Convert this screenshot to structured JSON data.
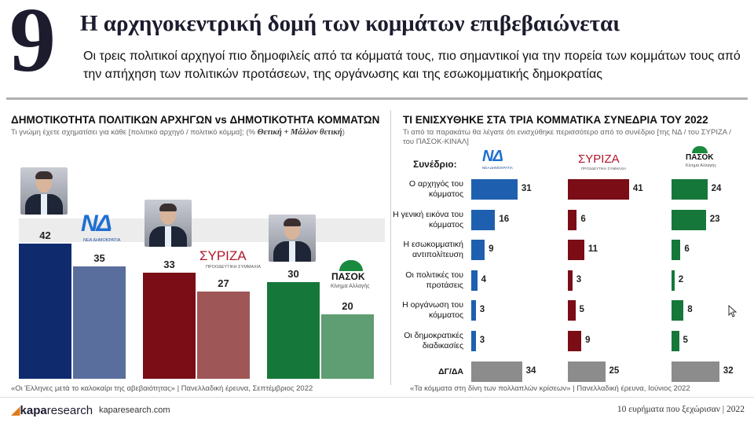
{
  "header": {
    "number": "9",
    "title": "Η αρχηγοκεντρική δομή των κομμάτων επιβεβαιώνεται",
    "subtitle": "Οι τρεις πολιτικοί αρχηγοί πιο δημοφιλείς από τα κόμματά τους, πιο σημαντικοί για την πορεία των κομμάτων τους από την απήχηση των πολιτικών προτάσεων, της οργάνωσης και της εσωκομματικής δημοκρατίας"
  },
  "logos": {
    "nd": "ΝΔ",
    "nd_sub": "ΝΕΑ ΔΗΜΟΚΡΑΤΙΑ",
    "syriza": "ΣΥΡΙΖΑ",
    "syriza_sub": "ΠΡΟΟΔΕΥΤΙΚΗ ΣΥΜΜΑΧΙΑ",
    "pasok": "ΠΑΣΟΚ",
    "pasok_sub": "Κίνημα Αλλαγής"
  },
  "left_chart": {
    "heading": "ΔΗΜΟΤΙΚΟΤΗΤΑ ΠΟΛΙΤΙΚΩΝ ΑΡΧΗΓΩΝ vs ΔΗΜΟΤΙΚΟΤΗΤΑ ΚΟΜΜΑΤΩΝ",
    "question": "Τι γνώμη έχετε σχηματίσει για κάθε [πολιτικό αρχηγό / πολιτικό κόμμα]; (%",
    "question_em": "Θετική + Μάλλον θετική",
    "question_end": ")",
    "source": "«Οι Έλληνες μετά το καλοκαίρι της αβεβαιότητας» | Πανελλαδική έρευνα, Σεπτέμβριος 2022"
  },
  "right_chart": {
    "heading": "ΤΙ ΕΝΙΣΧΥΘΗΚΕ ΣΤΑ ΤΡΙΑ ΚΟΜΜΑΤΙΚΑ ΣΥΝΕΔΡΙΑ ΤΟΥ 2022",
    "question": "Τι από τα παρακάτω θα λέγατε ότι ενισχύθηκε περισσότερο από το συνέδριο [της ΝΔ / του ΣΥΡΙΖΑ / του ΠΑΣΟΚ-ΚΙΝΑΛ]",
    "congress_label": "Συνέδριο:",
    "source": "«Τα κόμματα στη δίνη των πολλαπλών κρίσεων» | Πανελλαδική έρευνα, Ιούνιος 2022"
  },
  "chart_data": [
    {
      "type": "bar",
      "title": "ΔΗΜΟΤΙΚΟΤΗΤΑ ΠΟΛΙΤΙΚΩΝ ΑΡΧΗΓΩΝ vs ΔΗΜΟΤΙΚΟΤΗΤΑ ΚΟΜΜΑΤΩΝ",
      "categories": [
        "ΝΔ",
        "ΣΥΡΙΖΑ",
        "ΠΑΣΟΚ"
      ],
      "series": [
        {
          "values": [
            42,
            33,
            30
          ]
        },
        {
          "values": [
            35,
            27,
            20
          ]
        }
      ],
      "leader_colors": [
        "#0f2b6e",
        "#7a0d16",
        "#16773a"
      ],
      "party_colors": [
        "#5a6e9e",
        "#9e5657",
        "#5f9e72"
      ],
      "ylim": [
        0,
        50
      ]
    },
    {
      "type": "bar",
      "title": "ΤΙ ΕΝΙΣΧΥΘΗΚΕ ΣΤΑ ΤΡΙΑ ΚΟΜΜΑΤΙΚΑ ΣΥΝΕΔΡΙΑ ΤΟΥ 2022",
      "categories": [
        "Ο αρχηγός του κόμματος",
        "Η γενική εικόνα του κόμματος",
        "Η εσωκομματική αντιπολίτευση",
        "Οι πολιτικές του προτάσεις",
        "Η οργάνωση του κόμματος",
        "Οι δημοκρατικές διαδικασίες",
        "ΔΓ/ΔΑ"
      ],
      "series": [
        {
          "name": "ΝΔ",
          "values": [
            31,
            16,
            9,
            4,
            3,
            3,
            34
          ],
          "color": "#1f5fb0"
        },
        {
          "name": "ΣΥΡΙΖΑ",
          "values": [
            41,
            6,
            11,
            3,
            5,
            9,
            25
          ],
          "color": "#7a0d16"
        },
        {
          "name": "ΠΑΣΟΚ",
          "values": [
            24,
            23,
            6,
            2,
            8,
            5,
            32
          ],
          "color": "#16773a"
        }
      ],
      "last_category_color": "#8c8c8c",
      "xlim": [
        0,
        45
      ]
    }
  ],
  "footer": {
    "brand_bold": "kapa",
    "brand_rest": "research",
    "url": "kaparesearch.com",
    "right": "10 ευρήματα που ξεχώρισαν | 2022"
  }
}
